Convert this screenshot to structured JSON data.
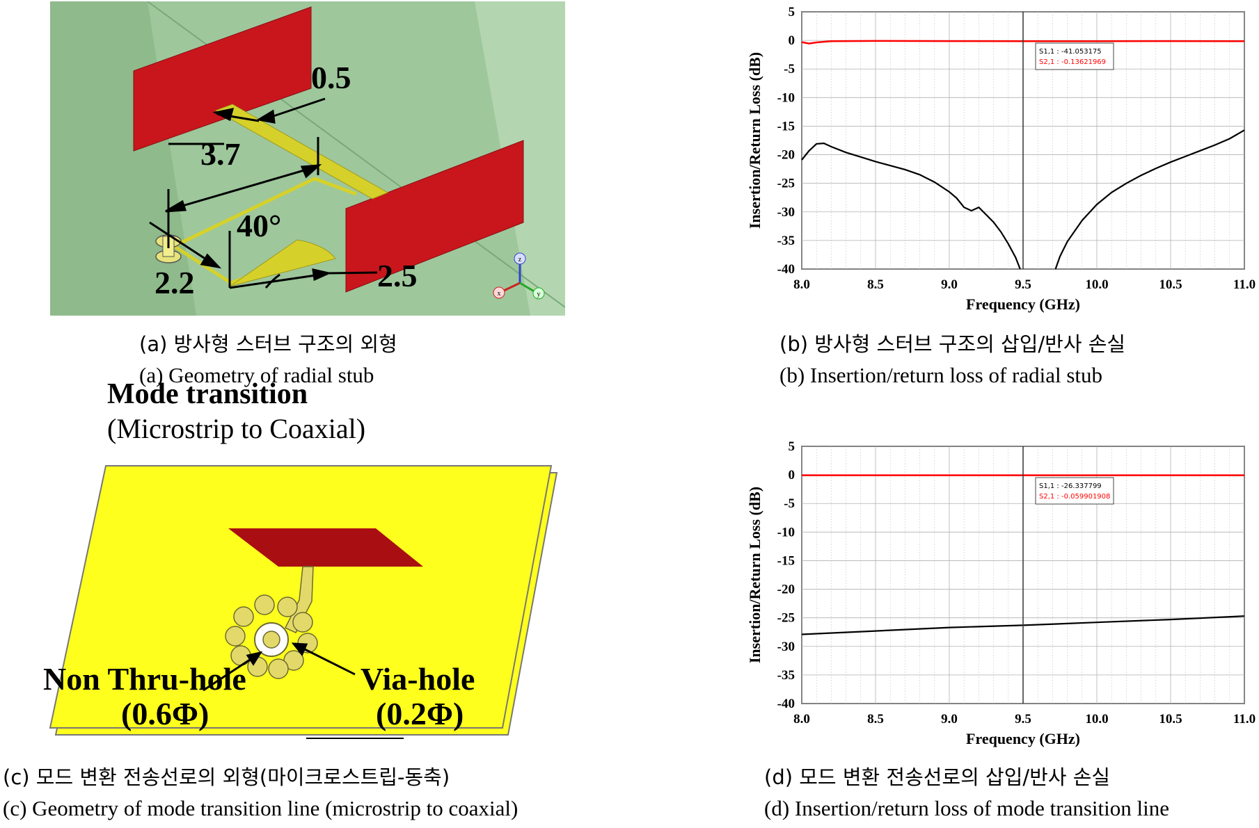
{
  "captions": {
    "a_ko": "(a) 방사형 스터브 구조의 외형",
    "a_en": "(a) Geometry of radial stub",
    "b_ko": "(b) 방사형 스터브 구조의 삽입/반사 손실",
    "b_en": "(b) Insertion/return loss of radial stub",
    "c_ko": "(c) 모드 변환 전송선로의 외형(마이크로스트립-동축)",
    "c_en": "(c) Geometry of mode transition line (microstrip to coaxial)",
    "d_ko": "(d) 모드 변환 전송선로의 삽입/반사 손실",
    "d_en": "(d) Insertion/return loss of mode transition line"
  },
  "figure_a": {
    "dim_width": "0.5",
    "dim_length": "3.7",
    "dim_angle": "40°",
    "dim_offset": "2.2",
    "dim_radius": "2.5",
    "axis_z": "z",
    "axis_x": "x",
    "axis_y": "y",
    "colors": {
      "background": "#9ec79c",
      "plate": "#c8161c",
      "metal": "#d6d12a"
    }
  },
  "figure_c": {
    "title": "Mode transition",
    "subtitle": "(Microstrip to Coaxial)",
    "label_left": "Non Thru-hole",
    "label_left_dim": "(0.6Φ)",
    "label_right": "Via-hole",
    "label_right_dim": "(0.2Φ)",
    "colors": {
      "board": "#ffff1e",
      "pad": "#a90f12",
      "via": "#e3d96a"
    }
  },
  "chart_data": [
    {
      "type": "line",
      "id": "b",
      "xlabel": "Frequency (GHz)",
      "ylabel": "Insertion/Return Loss (dB)",
      "xlim": [
        8.0,
        11.0
      ],
      "ylim": [
        -40,
        5
      ],
      "xticks": [
        "8.0",
        "8.5",
        "9.0",
        "9.5",
        "10.0",
        "10.5",
        "11.0"
      ],
      "yticks": [
        "5",
        "0",
        "-5",
        "-10",
        "-15",
        "-20",
        "-25",
        "-30",
        "-35",
        "-40"
      ],
      "grid": true,
      "marker_x": 9.5,
      "marker_labels": [
        "S1,1 : -41.053175",
        "S2,1 : -0.13621969"
      ],
      "series": [
        {
          "name": "S1,1",
          "color": "#000000",
          "points": [
            [
              8.0,
              -20.9
            ],
            [
              8.05,
              -19.3
            ],
            [
              8.1,
              -18.1
            ],
            [
              8.15,
              -18.0
            ],
            [
              8.2,
              -18.6
            ],
            [
              8.3,
              -19.6
            ],
            [
              8.4,
              -20.4
            ],
            [
              8.5,
              -21.2
            ],
            [
              8.6,
              -21.9
            ],
            [
              8.7,
              -22.6
            ],
            [
              8.8,
              -23.5
            ],
            [
              8.9,
              -24.8
            ],
            [
              9.0,
              -26.5
            ],
            [
              9.05,
              -27.6
            ],
            [
              9.1,
              -29.2
            ],
            [
              9.15,
              -29.8
            ],
            [
              9.2,
              -29.2
            ],
            [
              9.25,
              -30.5
            ],
            [
              9.3,
              -31.8
            ],
            [
              9.35,
              -33.5
            ],
            [
              9.4,
              -35.6
            ],
            [
              9.45,
              -38.0
            ],
            [
              9.48,
              -40.0
            ],
            [
              null,
              null
            ],
            [
              9.72,
              -40.0
            ],
            [
              9.75,
              -37.8
            ],
            [
              9.8,
              -35.2
            ],
            [
              9.9,
              -31.5
            ],
            [
              10.0,
              -28.7
            ],
            [
              10.1,
              -26.6
            ],
            [
              10.2,
              -25.0
            ],
            [
              10.3,
              -23.6
            ],
            [
              10.4,
              -22.4
            ],
            [
              10.5,
              -21.3
            ],
            [
              10.6,
              -20.3
            ],
            [
              10.7,
              -19.3
            ],
            [
              10.8,
              -18.3
            ],
            [
              10.9,
              -17.2
            ],
            [
              11.0,
              -15.7
            ]
          ]
        },
        {
          "name": "S2,1",
          "color": "#ff0000",
          "points": [
            [
              8.0,
              -0.3
            ],
            [
              8.05,
              -0.55
            ],
            [
              8.1,
              -0.35
            ],
            [
              8.2,
              -0.15
            ],
            [
              8.5,
              -0.1
            ],
            [
              9.0,
              -0.12
            ],
            [
              9.5,
              -0.14
            ],
            [
              10.0,
              -0.15
            ],
            [
              10.5,
              -0.12
            ],
            [
              11.0,
              -0.15
            ]
          ]
        }
      ]
    },
    {
      "type": "line",
      "id": "d",
      "xlabel": "Frequency (GHz)",
      "ylabel": "Insertion/Return Loss (dB)",
      "xlim": [
        8.0,
        11.0
      ],
      "ylim": [
        -40,
        5
      ],
      "xticks": [
        "8.0",
        "8.5",
        "9.0",
        "9.5",
        "10.0",
        "10.5",
        "11.0"
      ],
      "yticks": [
        "5",
        "0",
        "-5",
        "-10",
        "-15",
        "-20",
        "-25",
        "-30",
        "-35",
        "-40"
      ],
      "grid": true,
      "marker_x": 9.5,
      "marker_labels": [
        "S1,1 : -26.337799",
        "S2,1 : -0.059901908"
      ],
      "series": [
        {
          "name": "S1,1",
          "color": "#000000",
          "points": [
            [
              8.0,
              -27.9
            ],
            [
              8.5,
              -27.3
            ],
            [
              9.0,
              -26.7
            ],
            [
              9.5,
              -26.3
            ],
            [
              10.0,
              -25.8
            ],
            [
              10.5,
              -25.3
            ],
            [
              11.0,
              -24.7
            ]
          ]
        },
        {
          "name": "S2,1",
          "color": "#ff0000",
          "points": [
            [
              8.0,
              -0.06
            ],
            [
              9.0,
              -0.06
            ],
            [
              10.0,
              -0.06
            ],
            [
              11.0,
              -0.06
            ]
          ]
        }
      ]
    }
  ]
}
